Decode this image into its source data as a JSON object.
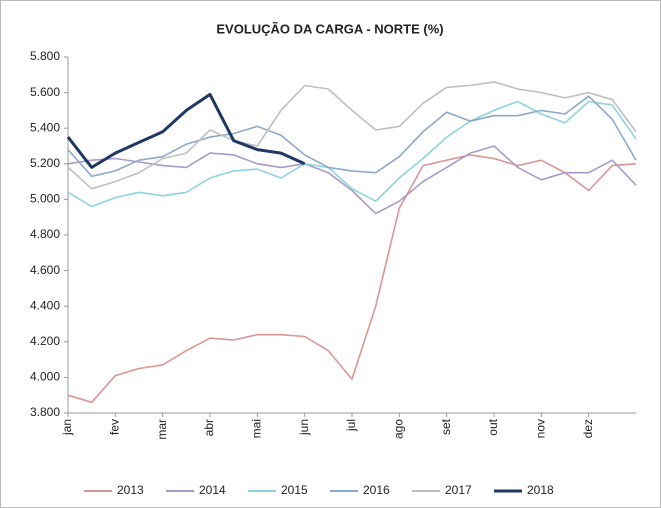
{
  "chart_data": {
    "type": "line",
    "title": "EVOLUÇÃO DA CARGA - NORTE (%)",
    "categories": [
      "jan",
      null,
      "fev",
      null,
      "mar",
      null,
      "abr",
      null,
      "mai",
      null,
      "jun",
      null,
      "jul",
      null,
      "ago",
      null,
      "set",
      null,
      "out",
      null,
      "nov",
      null,
      "dez",
      null,
      null
    ],
    "ylim": [
      3800,
      5800
    ],
    "yticks": [
      {
        "value": 3800,
        "label": "3.800"
      },
      {
        "value": 4000,
        "label": "4.000"
      },
      {
        "value": 4200,
        "label": "4.200"
      },
      {
        "value": 4400,
        "label": "4.400"
      },
      {
        "value": 4600,
        "label": "4.600"
      },
      {
        "value": 4800,
        "label": "4.800"
      },
      {
        "value": 5000,
        "label": "5.000"
      },
      {
        "value": 5200,
        "label": "5.200"
      },
      {
        "value": 5400,
        "label": "5.400"
      },
      {
        "value": 5600,
        "label": "5.600"
      },
      {
        "value": 5800,
        "label": "5.800"
      }
    ],
    "grid": false,
    "legend": "bottom",
    "series": [
      {
        "name": "2013",
        "color": "#d99694",
        "values": [
          3900,
          3860,
          4010,
          4050,
          4070,
          4150,
          4220,
          4210,
          4240,
          4240,
          4230,
          4150,
          3990,
          4400,
          4950,
          5190,
          5220,
          5250,
          5230,
          5190,
          5220,
          5150,
          5050,
          5190,
          5200
        ]
      },
      {
        "name": "2014",
        "color": "#a99bc9",
        "values": [
          5200,
          5220,
          5230,
          5210,
          5190,
          5180,
          5260,
          5250,
          5200,
          5180,
          5200,
          5150,
          5050,
          4920,
          4990,
          5100,
          5180,
          5260,
          5300,
          5180,
          5110,
          5150,
          5150,
          5220,
          5080
        ]
      },
      {
        "name": "2015",
        "color": "#8ed3e0",
        "values": [
          5040,
          4960,
          5010,
          5040,
          5020,
          5040,
          5120,
          5160,
          5170,
          5120,
          5200,
          5180,
          5060,
          4990,
          5120,
          5230,
          5350,
          5440,
          5500,
          5550,
          5480,
          5430,
          5550,
          5530,
          5340
        ]
      },
      {
        "name": "2016",
        "color": "#8ea9c8",
        "values": [
          5280,
          5130,
          5160,
          5220,
          5240,
          5310,
          5350,
          5370,
          5410,
          5360,
          5250,
          5180,
          5160,
          5150,
          5240,
          5380,
          5490,
          5440,
          5470,
          5470,
          5500,
          5480,
          5580,
          5450,
          5220
        ]
      },
      {
        "name": "2017",
        "color": "#bfbfbf",
        "values": [
          5180,
          5060,
          5100,
          5150,
          5230,
          5260,
          5390,
          5330,
          5300,
          5500,
          5640,
          5620,
          5500,
          5390,
          5410,
          5540,
          5630,
          5640,
          5660,
          5620,
          5600,
          5570,
          5600,
          5560,
          5380
        ]
      },
      {
        "name": "2018",
        "color": "#1f3864",
        "values": [
          5350,
          5180,
          5260,
          5320,
          5380,
          5500,
          5590,
          5330,
          5280,
          5260,
          5200,
          null,
          null,
          null,
          null,
          null,
          null,
          null,
          null,
          null,
          null,
          null,
          null,
          null,
          null
        ]
      }
    ]
  }
}
